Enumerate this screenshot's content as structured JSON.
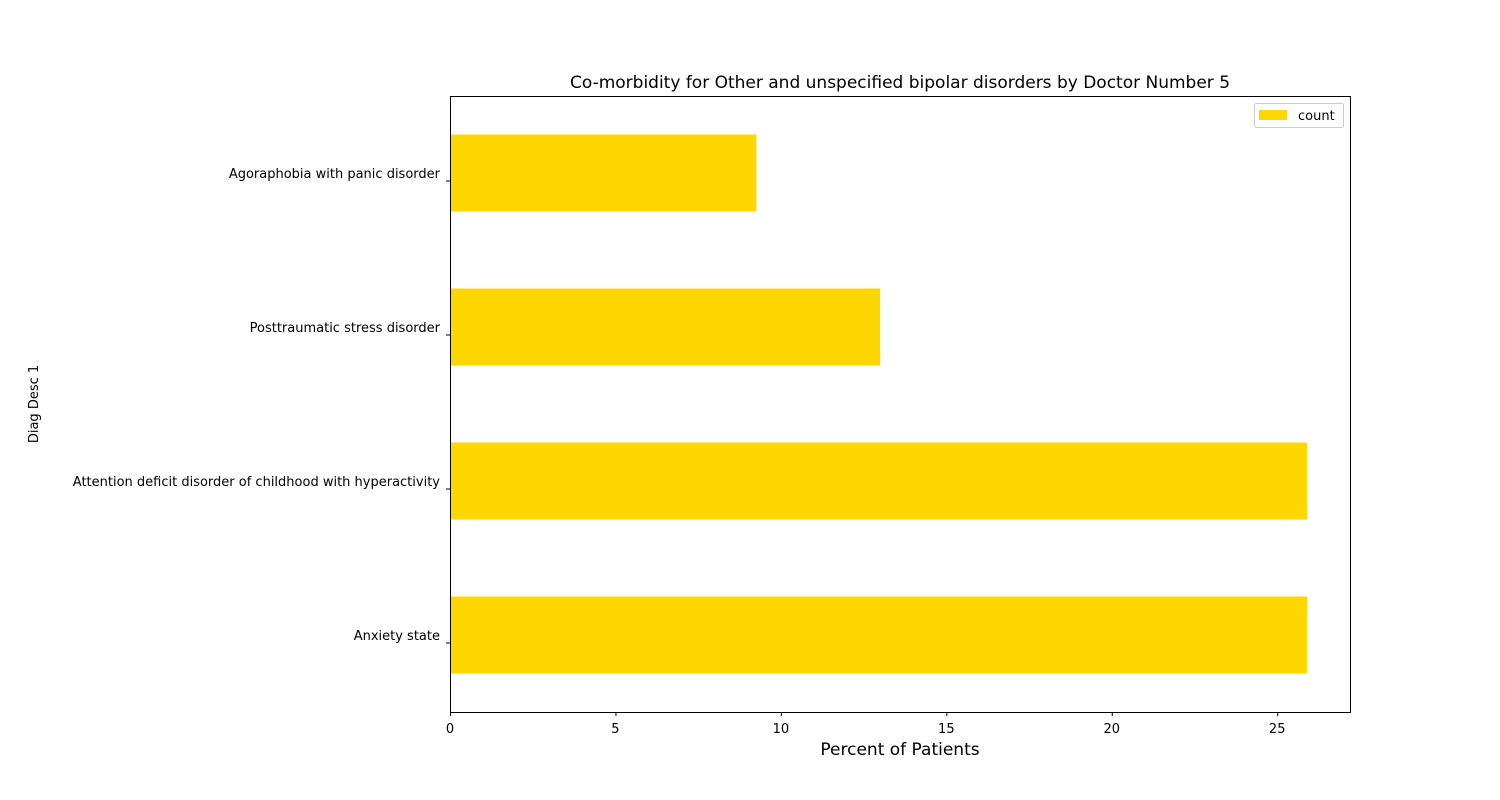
{
  "chart_data": {
    "type": "bar",
    "orientation": "horizontal",
    "title": "Co-morbidity for Other and unspecified bipolar disorders by Doctor Number 5",
    "xlabel": "Percent of Patients",
    "ylabel": "Diag Desc 1",
    "categories": [
      "Anxiety state",
      "Attention deficit disorder of childhood with hyperactivity",
      "Posttraumatic stress disorder",
      "Agoraphobia with panic disorder"
    ],
    "series": [
      {
        "name": "count",
        "values": [
          25.9,
          25.9,
          13.0,
          9.26
        ],
        "color": "#FFD700"
      }
    ],
    "xlim": [
      0,
      27.2
    ],
    "xticks": [
      0,
      5,
      10,
      15,
      20,
      25
    ],
    "grid": false,
    "legend_placement": "top-right"
  }
}
